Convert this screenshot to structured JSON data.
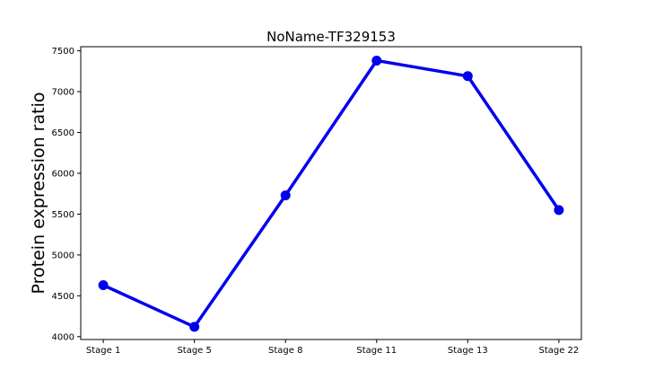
{
  "chart_data": {
    "type": "line",
    "title": "NoName-TF329153",
    "xlabel": "",
    "ylabel": "Protein expression ratio",
    "categories": [
      "Stage 1",
      "Stage 5",
      "Stage 8",
      "Stage 11",
      "Stage 13",
      "Stage 22"
    ],
    "series": [
      {
        "values": [
          4630,
          4120,
          5730,
          7380,
          7190,
          5550
        ],
        "color": "#0000ee",
        "marker": "circle"
      }
    ],
    "ylim": [
      3965,
      7550
    ],
    "yticks": [
      4000,
      4500,
      5000,
      5500,
      6000,
      6500,
      7000,
      7500
    ],
    "grid": false,
    "legend": "none"
  }
}
